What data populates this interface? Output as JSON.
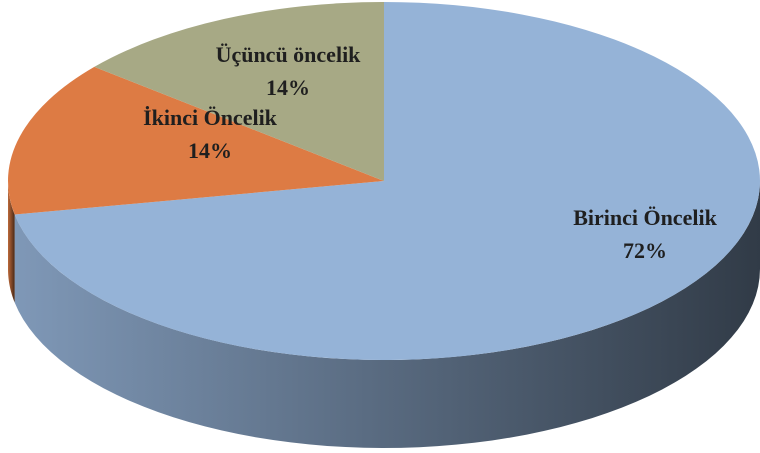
{
  "chart_data": {
    "type": "pie",
    "categories": [
      "Birinci Öncelik",
      "İkinci Öncelik",
      "Üçüncü öncelik"
    ],
    "values": [
      72,
      14,
      14
    ],
    "value_labels": [
      "72%",
      "14%",
      "14%"
    ],
    "colors": [
      "#95b3d7",
      "#dd7b44",
      "#a7a985"
    ]
  }
}
